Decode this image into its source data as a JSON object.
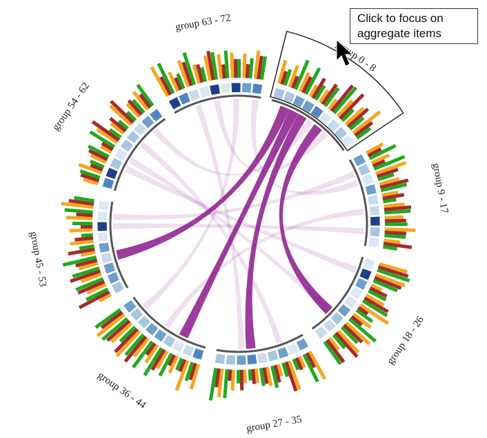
{
  "groups": [
    {
      "label": "group 0 - 8"
    },
    {
      "label": "group 9 - 17"
    },
    {
      "label": "group 18 - 26"
    },
    {
      "label": "group 27 - 35"
    },
    {
      "label": "group 36 - 44"
    },
    {
      "label": "group 45 - 53"
    },
    {
      "label": "group 54 - 62"
    },
    {
      "label": "group 63 - 72"
    }
  ],
  "tooltip": {
    "line1": "Click to focus on",
    "line2": "aggregate items"
  },
  "colors": {
    "bar_orange": "#f5a623",
    "bar_red": "#a52a2a",
    "bar_green": "#1faa1f",
    "chord_purple": "#8b1a8b",
    "cell_light": "#c9dbea",
    "cell_mid": "#6f9fcc",
    "cell_dark": "#1f3f88"
  }
}
